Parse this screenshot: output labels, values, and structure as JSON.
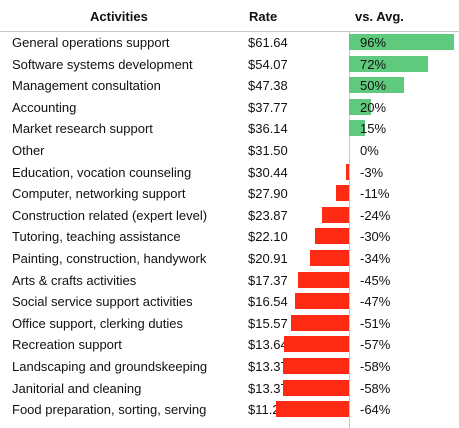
{
  "table": {
    "headers": {
      "activities": "Activities",
      "rate": "Rate",
      "vs_avg": "vs. Avg."
    }
  },
  "chart_data": {
    "type": "bar",
    "title": "",
    "xlabel": "",
    "ylabel": "",
    "categories": [
      "General operations support",
      "Software systems development",
      "Management consultation",
      "Accounting",
      "Market research support",
      "Other",
      "Education, vocation counseling",
      "Computer, networking support",
      "Construction related (expert level)",
      "Tutoring, teaching assistance",
      "Painting, construction, handywork",
      "Arts & crafts activities",
      "Social service support activities",
      "Office support, clerking duties",
      "Recreation support",
      "Landscaping and groundskeeping",
      "Janitorial and cleaning",
      "Food preparation, sorting, serving"
    ],
    "rates": [
      "$61.64",
      "$54.07",
      "$47.38",
      "$37.77",
      "$36.14",
      "$31.50",
      "$30.44",
      "$27.90",
      "$23.87",
      "$22.10",
      "$20.91",
      "$17.37",
      "$16.54",
      "$15.57",
      "$13.64",
      "$13.37",
      "$13.37",
      "$11.28"
    ],
    "values": [
      96,
      72,
      50,
      20,
      15,
      0,
      -3,
      -11,
      -24,
      -30,
      -34,
      -45,
      -47,
      -51,
      -57,
      -58,
      -58,
      -64
    ],
    "value_labels": [
      "96%",
      "72%",
      "50%",
      "20%",
      "15%",
      "0%",
      "-3%",
      "-11%",
      "-24%",
      "-30%",
      "-34%",
      "-45%",
      "-47%",
      "-51%",
      "-57%",
      "-58%",
      "-58%",
      "-64%"
    ],
    "xlim": [
      -64,
      96
    ],
    "positive_color": "#5fc97d",
    "negative_color": "#ff2a14"
  }
}
